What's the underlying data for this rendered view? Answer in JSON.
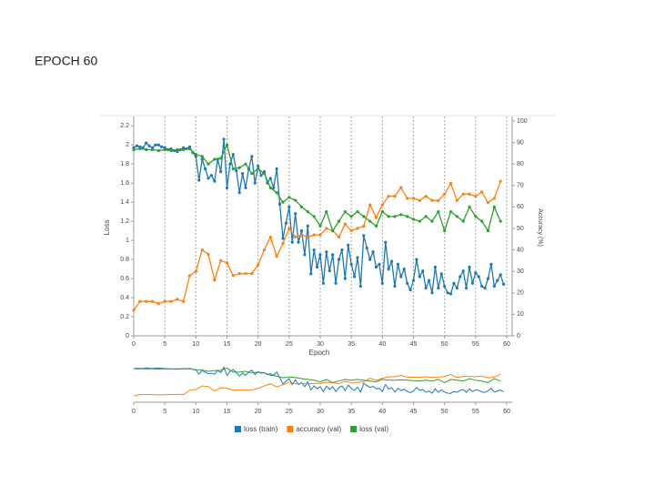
{
  "slide_title": "EPOCH 60",
  "chart_data": {
    "type": "line",
    "xlabel": "Epoch",
    "ylabel": "Loss",
    "y2label": "Accuracy (%)",
    "xlim": [
      0,
      60
    ],
    "xticks": [
      0,
      5,
      10,
      15,
      20,
      25,
      30,
      35,
      40,
      45,
      50,
      55,
      60
    ],
    "ylim": [
      0,
      2.25
    ],
    "yticks": [
      0,
      0.2,
      0.4,
      0.6,
      0.8,
      1,
      1.2,
      1.4,
      1.6,
      1.8,
      2,
      2.2
    ],
    "y2lim": [
      0,
      100
    ],
    "y2ticks": [
      0,
      10,
      20,
      30,
      40,
      50,
      60,
      70,
      80,
      90,
      100
    ],
    "xgrid": true,
    "legend": "bottom",
    "series": [
      {
        "name": "loss (train)",
        "color": "#1f77b4",
        "x": [
          0,
          0.5,
          1,
          1.5,
          2,
          2.5,
          3,
          3.5,
          4,
          4.5,
          5,
          5.5,
          6,
          6.5,
          7,
          7.5,
          8,
          8.5,
          9,
          9.5,
          10,
          10.5,
          11,
          11.5,
          12,
          12.5,
          13,
          13.5,
          14,
          14.5,
          15,
          15.5,
          16,
          16.5,
          17,
          17.5,
          18,
          18.5,
          19,
          19.5,
          20,
          20.5,
          21,
          21.5,
          22,
          22.5,
          23,
          23.5,
          24,
          24.5,
          25,
          25.5,
          26,
          26.5,
          27,
          27.5,
          28,
          28.5,
          29,
          29.5,
          30,
          30.5,
          31,
          31.5,
          32,
          32.5,
          33,
          33.5,
          34,
          34.5,
          35,
          35.5,
          36,
          36.5,
          37,
          37.5,
          38,
          38.5,
          39,
          39.5,
          40,
          40.5,
          41,
          41.5,
          42,
          42.5,
          43,
          43.5,
          44,
          44.5,
          45,
          45.5,
          46,
          46.5,
          47,
          47.5,
          48,
          48.5,
          49,
          49.5,
          50,
          50.5,
          51,
          51.5,
          52,
          52.5,
          53,
          53.5,
          54,
          54.5,
          55,
          55.5,
          56,
          56.5,
          57,
          57.5,
          58,
          58.5,
          59,
          59.5
        ],
        "values": [
          1.97,
          1.99,
          1.98,
          1.97,
          2.02,
          1.99,
          1.97,
          2.0,
          2.0,
          1.98,
          1.97,
          1.95,
          1.96,
          1.94,
          1.93,
          1.95,
          1.97,
          1.96,
          1.98,
          1.92,
          1.88,
          1.63,
          1.85,
          1.75,
          1.65,
          1.68,
          1.62,
          1.85,
          1.72,
          2.06,
          1.55,
          1.8,
          1.9,
          1.73,
          1.5,
          1.7,
          1.55,
          1.75,
          1.88,
          1.6,
          1.78,
          1.68,
          1.72,
          1.6,
          1.65,
          1.55,
          1.75,
          1.38,
          1.02,
          1.18,
          1.35,
          0.98,
          1.28,
          0.98,
          1.1,
          0.85,
          1.15,
          0.65,
          0.9,
          0.72,
          0.85,
          0.55,
          0.88,
          0.68,
          0.85,
          0.55,
          0.8,
          0.9,
          0.6,
          0.95,
          0.75,
          0.62,
          0.82,
          0.52,
          1.05,
          0.92,
          0.8,
          0.88,
          0.72,
          0.75,
          0.55,
          0.98,
          0.7,
          0.78,
          0.52,
          0.75,
          0.62,
          0.7,
          0.55,
          0.48,
          0.58,
          0.8,
          0.62,
          0.68,
          0.5,
          0.58,
          0.45,
          0.72,
          0.5,
          0.65,
          0.52,
          0.45,
          0.44,
          0.55,
          0.5,
          0.62,
          0.68,
          0.5,
          0.72,
          0.55,
          0.66,
          0.62,
          0.52,
          0.5,
          0.6,
          0.75,
          0.52,
          0.58,
          0.64,
          0.54
        ]
      },
      {
        "name": "accuracy (val)",
        "color": "#ff7f0e",
        "axis": "y2",
        "x": [
          0,
          1,
          2,
          3,
          4,
          5,
          6,
          7,
          8,
          9,
          10,
          11,
          12,
          13,
          14,
          15,
          16,
          17,
          18,
          19,
          20,
          21,
          22,
          23,
          24,
          25,
          26,
          27,
          28,
          29,
          30,
          31,
          32,
          33,
          34,
          35,
          36,
          37,
          38,
          39,
          40,
          41,
          42,
          43,
          44,
          45,
          46,
          47,
          48,
          49,
          50,
          51,
          52,
          53,
          54,
          55,
          56,
          57,
          58,
          59
        ],
        "values": [
          12,
          16,
          16,
          16,
          15,
          16,
          16,
          17,
          16,
          28,
          30,
          40,
          38,
          26,
          35,
          34,
          28,
          29,
          29,
          29,
          33,
          40,
          46,
          37,
          43,
          50,
          46,
          47,
          46,
          47,
          47,
          50,
          49,
          46,
          52,
          49,
          50,
          51,
          61,
          55,
          61,
          65,
          65,
          69,
          64,
          64,
          63,
          65,
          63,
          63,
          66,
          71,
          63,
          66,
          66,
          65,
          67,
          62,
          64,
          72
        ]
      },
      {
        "name": "loss (val)",
        "color": "#2ca02c",
        "x": [
          0,
          1,
          2,
          3,
          4,
          5,
          6,
          7,
          8,
          9,
          10,
          11,
          12,
          13,
          14,
          15,
          16,
          17,
          18,
          19,
          20,
          21,
          22,
          23,
          24,
          25,
          26,
          27,
          28,
          29,
          30,
          31,
          32,
          33,
          34,
          35,
          36,
          37,
          38,
          39,
          40,
          41,
          42,
          43,
          44,
          45,
          46,
          47,
          48,
          49,
          50,
          51,
          52,
          53,
          54,
          55,
          56,
          57,
          58,
          59
        ],
        "values": [
          1.95,
          1.96,
          1.95,
          1.95,
          1.94,
          1.95,
          1.94,
          1.95,
          1.95,
          1.96,
          1.9,
          1.88,
          1.8,
          1.85,
          1.86,
          2.0,
          1.75,
          1.76,
          1.8,
          1.7,
          1.75,
          1.7,
          1.55,
          1.5,
          1.4,
          1.45,
          1.42,
          1.35,
          1.3,
          1.25,
          1.15,
          1.3,
          1.1,
          1.2,
          1.3,
          1.25,
          1.3,
          1.25,
          1.2,
          1.15,
          1.3,
          1.25,
          1.25,
          1.27,
          1.25,
          1.22,
          1.2,
          1.25,
          1.2,
          1.3,
          1.1,
          1.3,
          1.25,
          1.2,
          1.35,
          1.25,
          1.2,
          1.1,
          1.35,
          1.2
        ]
      }
    ]
  }
}
